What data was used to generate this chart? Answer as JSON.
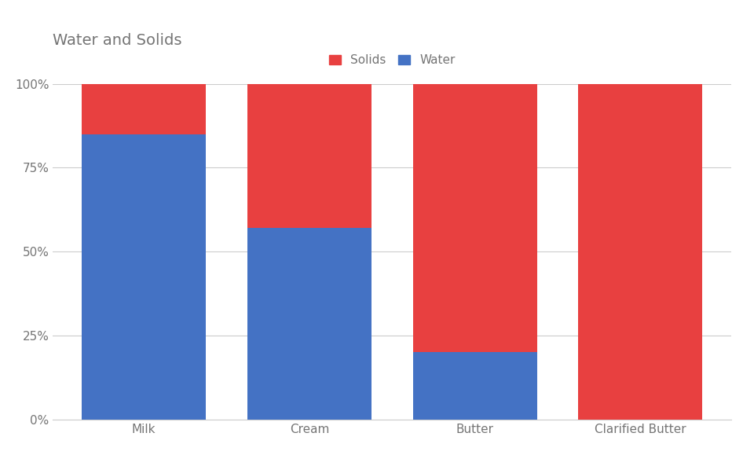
{
  "title": "Water and Solids",
  "categories": [
    "Milk",
    "Cream",
    "Butter",
    "Clarified Butter"
  ],
  "water": [
    85,
    57,
    20,
    0
  ],
  "solids": [
    15,
    43,
    80,
    100
  ],
  "water_color": "#4472C4",
  "solids_color": "#E84040",
  "legend_labels": [
    "Solids",
    "Water"
  ],
  "yticks": [
    0,
    25,
    50,
    75,
    100
  ],
  "ytick_labels": [
    "0%",
    "25%",
    "50%",
    "75%",
    "100%"
  ],
  "background_color": "#ffffff",
  "title_fontsize": 14,
  "title_color": "#757575",
  "tick_color": "#757575",
  "grid_color": "#cccccc",
  "bar_width": 0.75
}
